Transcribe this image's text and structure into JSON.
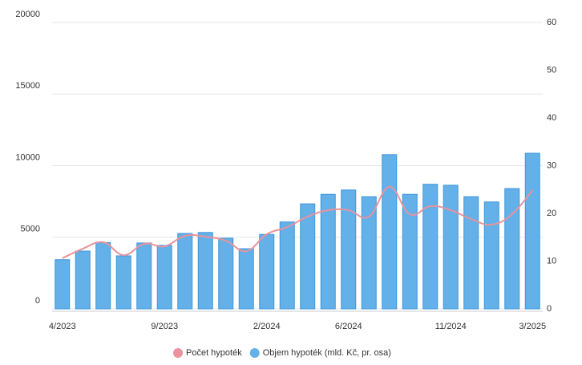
{
  "chart_data": {
    "type": "bar-line",
    "categories": [
      "4/2023",
      null,
      null,
      null,
      null,
      "9/2023",
      null,
      null,
      null,
      null,
      "2/2024",
      null,
      null,
      null,
      "6/2024",
      null,
      null,
      null,
      null,
      "11/2024",
      null,
      null,
      null,
      "3/2025"
    ],
    "series": [
      {
        "name": "Počet hypoték",
        "type": "line",
        "color": "#e8939d",
        "values": [
          3530,
          4200,
          4650,
          3750,
          4540,
          4370,
          5100,
          5040,
          4760,
          4030,
          5210,
          5710,
          6440,
          6890,
          6890,
          6440,
          8520,
          6610,
          7170,
          6890,
          6270,
          5880,
          6610,
          8290
        ]
      },
      {
        "name": "Objem hypoték (mld. Kč, pr. osa)",
        "type": "bar",
        "axis": "y2",
        "color": "#64b0e8",
        "values": [
          10.3,
          12.1,
          13.9,
          11.1,
          13.8,
          13.3,
          15.8,
          16.0,
          14.8,
          12.6,
          15.6,
          18.2,
          22.0,
          24.0,
          24.9,
          23.5,
          32.3,
          24.0,
          26.1,
          25.9,
          23.5,
          22.4,
          25.2,
          32.6
        ]
      }
    ],
    "ylim": [
      0,
      20000
    ],
    "yticks": [
      0,
      5000,
      10000,
      15000,
      20000
    ],
    "y2lim": [
      0,
      60
    ],
    "y2ticks": [
      0,
      10,
      20,
      30,
      40,
      50,
      60
    ],
    "grid": true,
    "legend": "bottom"
  }
}
